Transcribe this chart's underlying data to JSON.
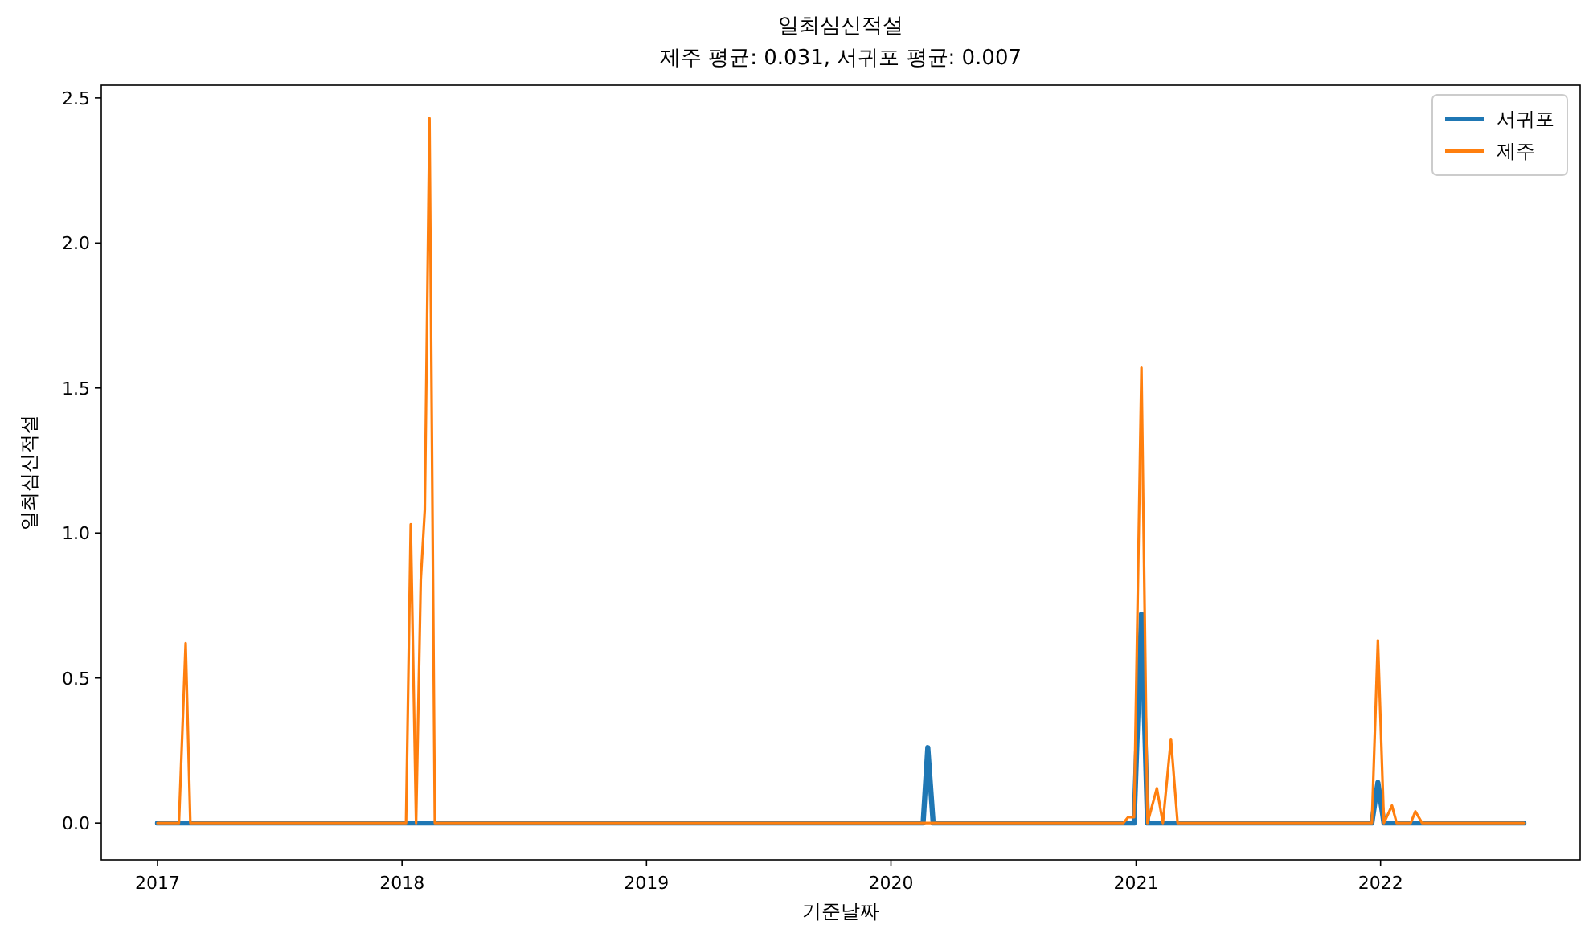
{
  "chart_data": {
    "type": "line",
    "title": "일최심신적설",
    "subtitle": "제주 평균: 0.031, 서귀포 평균: 0.007",
    "xlabel": "기준날짜",
    "ylabel": "일최심신적설",
    "xlim": [
      "2016-10-09",
      "2022-10-26"
    ],
    "xticks": [
      "2017",
      "2018",
      "2019",
      "2020",
      "2021",
      "2022"
    ],
    "ylim": [
      -0.127,
      2.544
    ],
    "yticks": [
      {
        "value": 0,
        "label": "0.0"
      },
      {
        "value": 0.5,
        "label": "0.5"
      },
      {
        "value": 1,
        "label": "1.0"
      },
      {
        "value": 1.5,
        "label": "1.5"
      },
      {
        "value": 2,
        "label": "2.0"
      },
      {
        "value": 2.5,
        "label": "2.5"
      }
    ],
    "grid": false,
    "legend": "top right",
    "line_style": "solid",
    "marker": "none",
    "series": [
      {
        "name": "서귀포",
        "color": "#1f77b4",
        "x": [
          "2017-01-01",
          "2020-02-18",
          "2020-02-25",
          "2020-03-04",
          "2020-12-29",
          "2021-01-09",
          "2021-01-18",
          "2021-12-19",
          "2021-12-28",
          "2022-01-06",
          "2022-08-03"
        ],
        "values": [
          0,
          0,
          0.26,
          0,
          0,
          0.72,
          0,
          0,
          0.14,
          0,
          0
        ]
      },
      {
        "name": "제주",
        "color": "#ff7f0e",
        "x": [
          "2017-01-01",
          "2017-02-02",
          "2017-02-12",
          "2017-02-19",
          "2018-01-07",
          "2018-01-14",
          "2018-01-22",
          "2018-01-29",
          "2018-02-04",
          "2018-02-11",
          "2018-02-19",
          "2020-12-13",
          "2020-12-20",
          "2020-12-29",
          "2021-01-09",
          "2021-01-18",
          "2021-02-01",
          "2021-02-10",
          "2021-02-22",
          "2021-03-04",
          "2021-12-19",
          "2021-12-28",
          "2022-01-06",
          "2022-01-18",
          "2022-01-25",
          "2022-02-15",
          "2022-02-22",
          "2022-03-04",
          "2022-08-03"
        ],
        "values": [
          0,
          0,
          0.62,
          0,
          0,
          1.03,
          0,
          0.84,
          1.08,
          2.43,
          0,
          0,
          0.02,
          0.02,
          1.57,
          0,
          0.12,
          0,
          0.29,
          0,
          0,
          0.63,
          0,
          0.06,
          0,
          0,
          0.04,
          0,
          0
        ]
      }
    ]
  }
}
